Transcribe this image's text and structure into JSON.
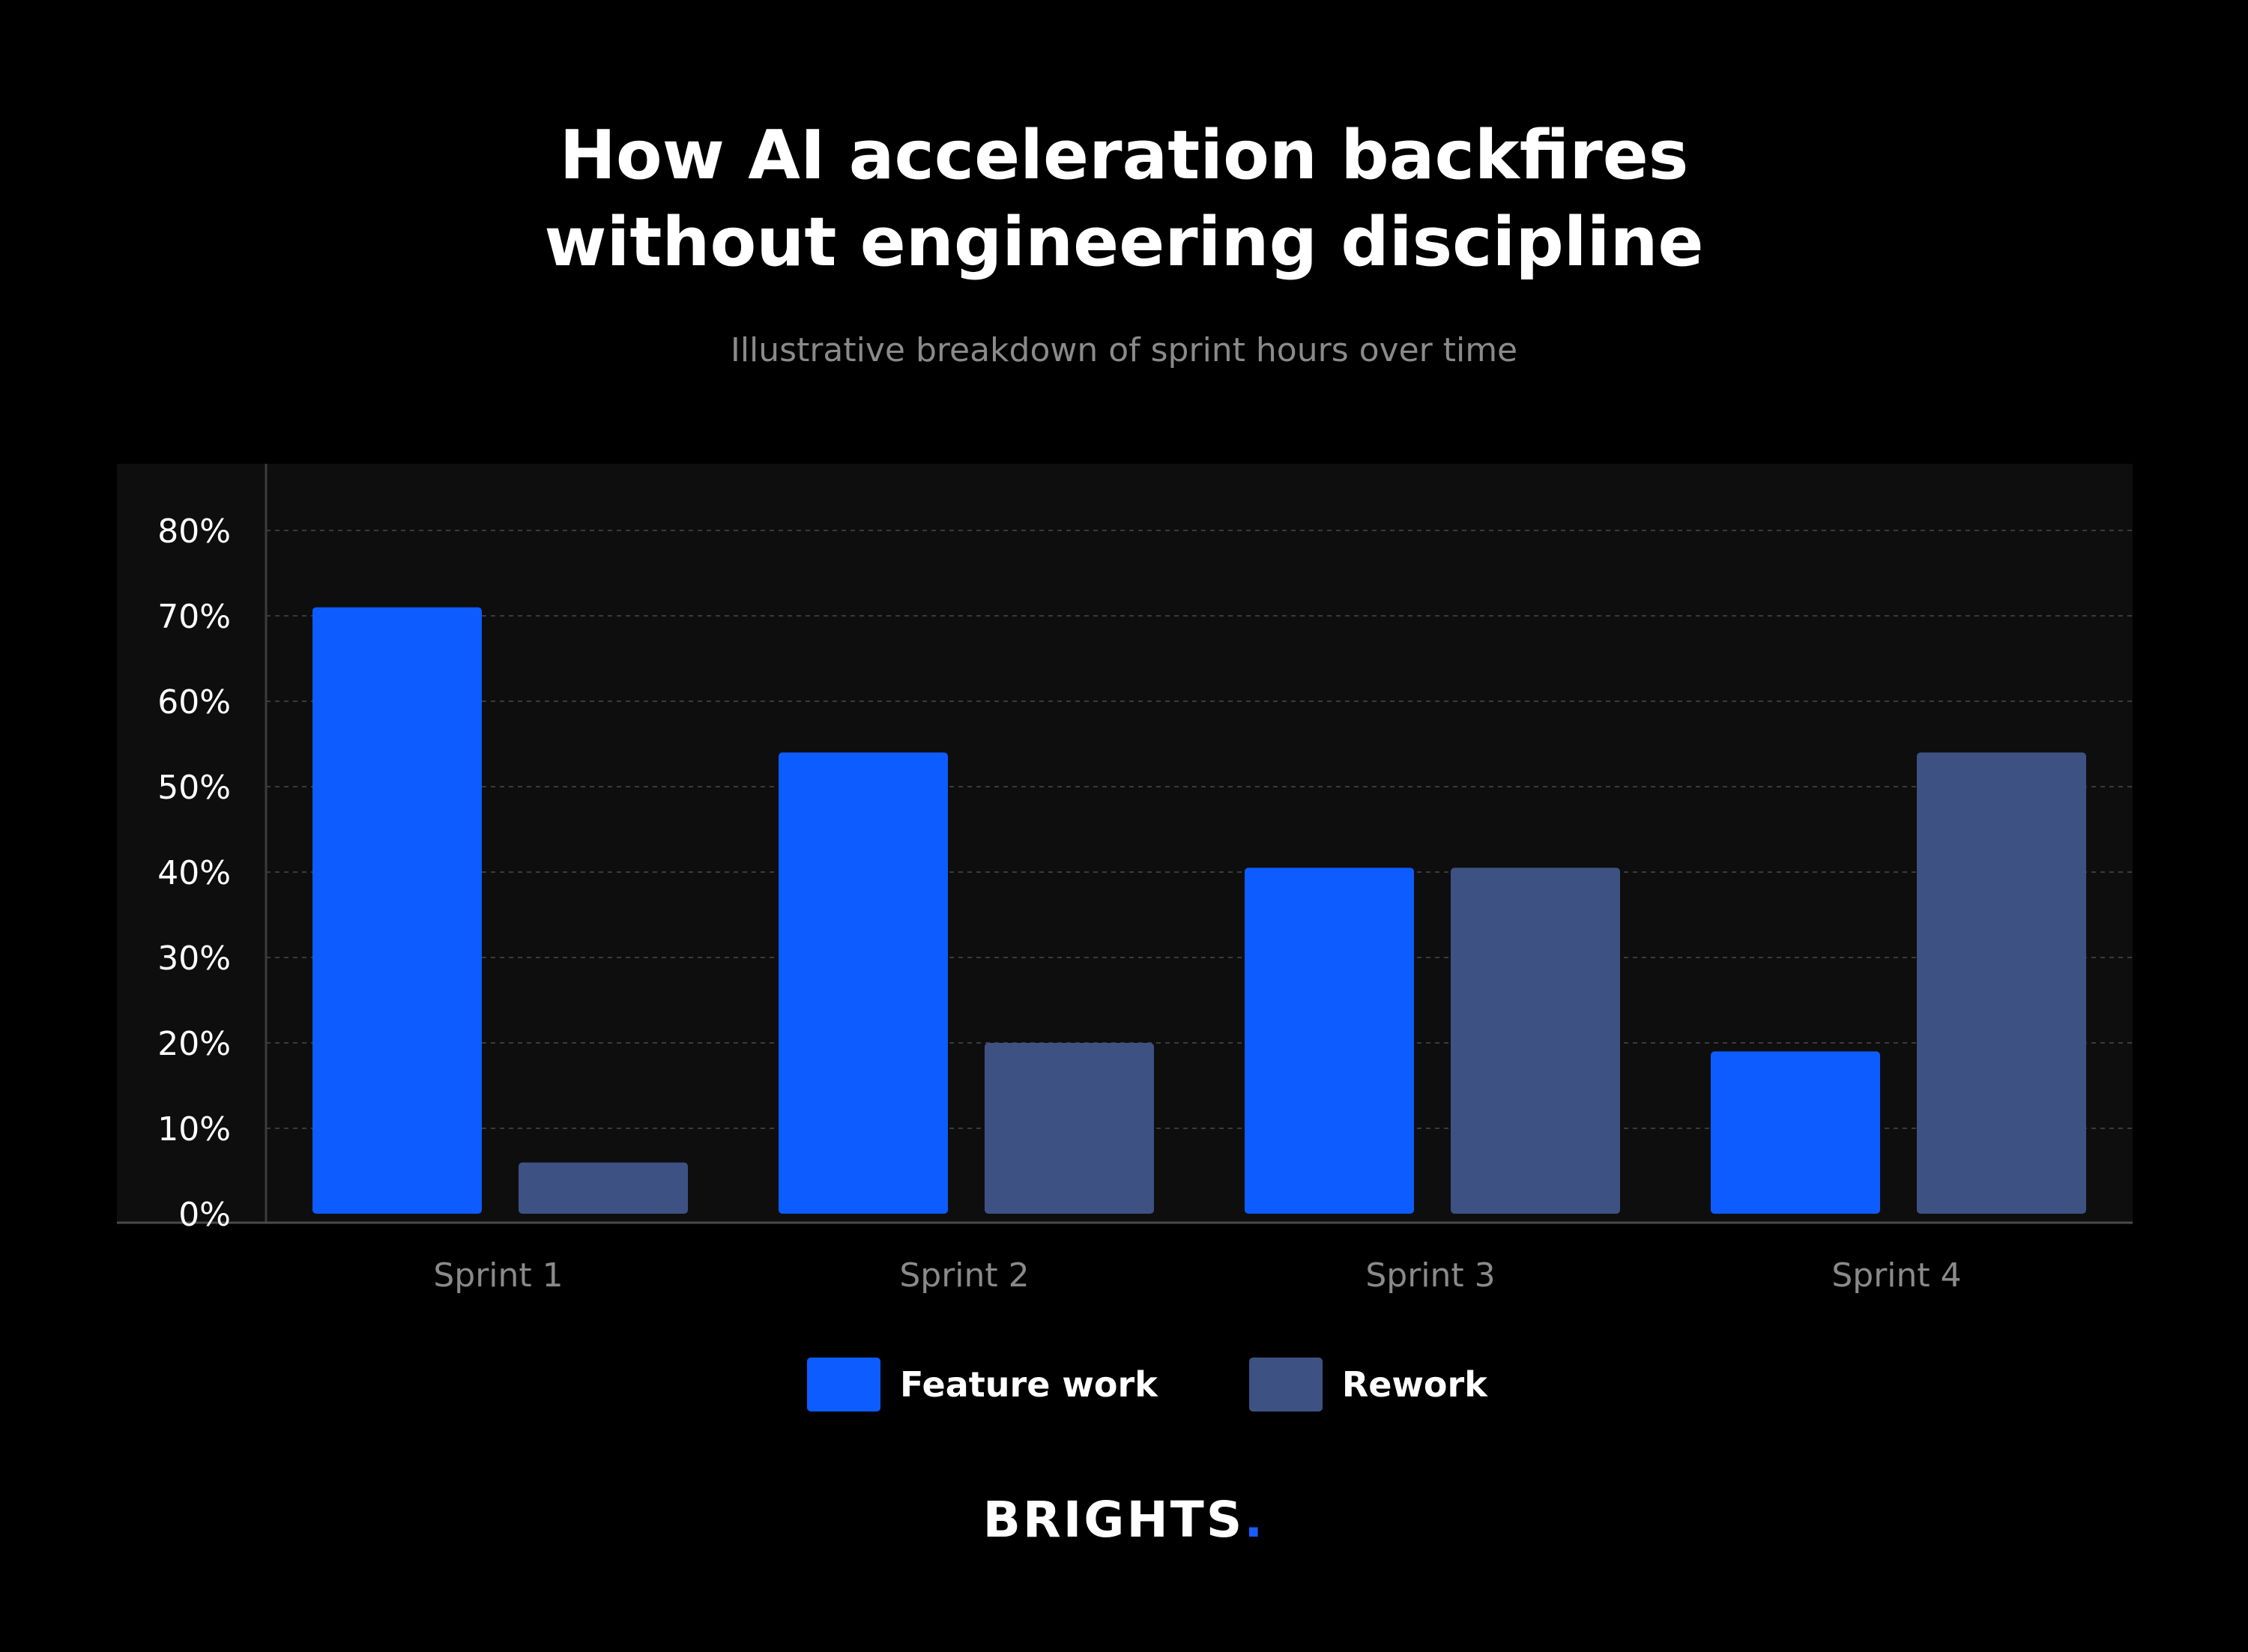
{
  "title_line1": "How AI acceleration backfires",
  "title_line2": "without engineering discipline",
  "subtitle": "Illustrative breakdown of sprint hours over time",
  "brand": {
    "name": "BRIGHTS",
    "dot": ".",
    "dot_color": "#1a5cff"
  },
  "colors": {
    "background": "#000000",
    "panel": "#0e0e0f",
    "feature_work": "#0d5cff",
    "rework": "#3d5282",
    "tick_label": "#ffffff",
    "category_label": "#8a8a8a"
  },
  "chart_data": {
    "type": "bar",
    "title": "How AI acceleration backfires without engineering discipline",
    "subtitle": "Illustrative breakdown of sprint hours over time",
    "categories": [
      "Sprint 1",
      "Sprint 2",
      "Sprint 3",
      "Sprint 4"
    ],
    "series": [
      {
        "name": "Feature work",
        "color": "#0d5cff",
        "values": [
          71,
          54,
          40.5,
          19
        ]
      },
      {
        "name": "Rework",
        "color": "#3d5282",
        "values": [
          6,
          20,
          40.5,
          54
        ]
      }
    ],
    "yticks": [
      0,
      10,
      20,
      30,
      40,
      50,
      60,
      70,
      80
    ],
    "ytick_labels": [
      "0%",
      "10%",
      "20%",
      "30%",
      "40%",
      "50%",
      "60%",
      "70%",
      "80%"
    ],
    "ylim": [
      0,
      82
    ],
    "xlabel": "",
    "ylabel": "",
    "grid": true,
    "legend_position": "bottom-center"
  }
}
